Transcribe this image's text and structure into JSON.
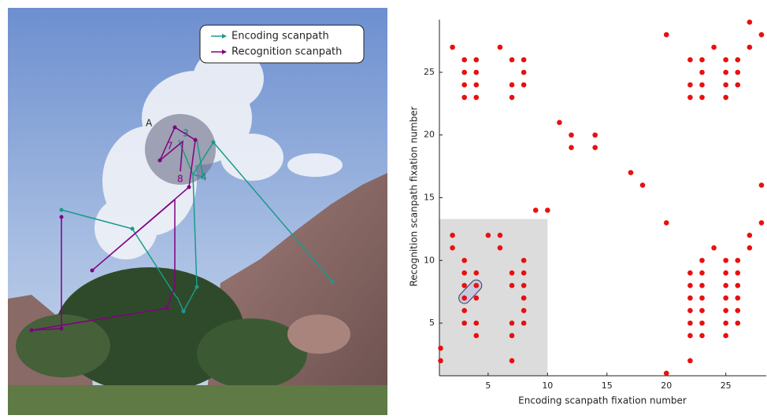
{
  "image_panel": {
    "legend": [
      "Encoding scanpath",
      "Recognition scanpath"
    ],
    "region_label": "A",
    "fixation_labels": [
      "3",
      "4",
      "7",
      "8"
    ]
  },
  "chart_data": {
    "type": "scatter",
    "x_label": "Encoding scanpath fixation number",
    "y_label": "Recognition scanpath fixation number",
    "color": "#e8100f",
    "xlim": [
      0.9,
      28.4
    ],
    "ylim": [
      0.8,
      29.2
    ],
    "xticks": [
      5,
      10,
      15,
      20,
      25
    ],
    "yticks": [
      5,
      10,
      15,
      20,
      25
    ],
    "highlight_region": {
      "xlim": [
        0.9,
        10
      ],
      "ylim": [
        0.8,
        13.3
      ],
      "color": "#dcdcdc"
    },
    "highlight_pair": {
      "x": [
        3,
        4
      ],
      "y": [
        7,
        8
      ]
    },
    "x": [
      2,
      3,
      3,
      3,
      3,
      4,
      4,
      4,
      4,
      6,
      7,
      7,
      7,
      8,
      8,
      8,
      11,
      12,
      12,
      14,
      14,
      17,
      18,
      9,
      10,
      20,
      20,
      20,
      22,
      22,
      22,
      23,
      23,
      23,
      23,
      24,
      25,
      25,
      25,
      25,
      26,
      26,
      26,
      27,
      27,
      28,
      28,
      28,
      1,
      1,
      2,
      2,
      3,
      3,
      3,
      3,
      3,
      3,
      4,
      4,
      4,
      4,
      4,
      5,
      6,
      6,
      7,
      7,
      7,
      7,
      7,
      8,
      8,
      8,
      8,
      8,
      8,
      22,
      22,
      22,
      22,
      22,
      22,
      22,
      23,
      23,
      23,
      23,
      23,
      23,
      23,
      24,
      25,
      25,
      25,
      25,
      25,
      25,
      25,
      26,
      26,
      26,
      26,
      26,
      26,
      27,
      27
    ],
    "y": [
      27,
      26,
      25,
      24,
      23,
      26,
      25,
      24,
      23,
      27,
      26,
      24,
      23,
      26,
      25,
      24,
      21,
      20,
      19,
      20,
      19,
      17,
      16,
      14,
      14,
      28,
      13,
      1,
      26,
      24,
      23,
      26,
      25,
      24,
      23,
      27,
      26,
      25,
      24,
      23,
      26,
      25,
      24,
      27,
      29,
      28,
      16,
      13,
      3,
      2,
      12,
      11,
      10,
      9,
      8,
      7,
      6,
      5,
      9,
      8,
      7,
      5,
      4,
      12,
      12,
      11,
      9,
      8,
      5,
      4,
      2,
      10,
      9,
      8,
      7,
      6,
      5,
      9,
      8,
      7,
      6,
      5,
      4,
      2,
      10,
      9,
      8,
      7,
      6,
      5,
      4,
      11,
      10,
      9,
      8,
      7,
      6,
      5,
      4,
      10,
      9,
      8,
      7,
      6,
      5,
      12,
      11
    ]
  }
}
